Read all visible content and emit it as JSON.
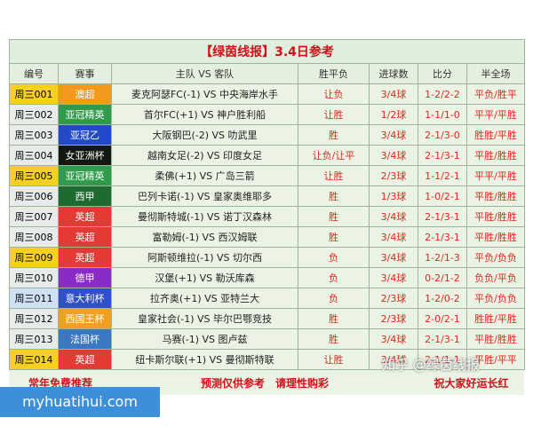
{
  "header": {
    "title": "【绿茵线报】3.4日参考"
  },
  "table": {
    "columns": [
      "编号",
      "赛事",
      "主队 VS 客队",
      "胜平负",
      "进球数",
      "比分",
      "半全场"
    ],
    "rows": [
      [
        "周三001",
        "澳超",
        "麦克阿瑟FC(-1) VS 中央海岸水手",
        "让负",
        "3/4球",
        "1-2/2-2",
        "平负/胜平"
      ],
      [
        "周三002",
        "亚冠精英",
        "首尔FC(+1) VS 神户胜利船",
        "让胜",
        "1/2球",
        "1-1/1-0",
        "平平/平胜"
      ],
      [
        "周三003",
        "亚冠乙",
        "大阪钢巴(-2) VS 叻武里",
        "胜",
        "3/4球",
        "2-1/3-0",
        "胜胜/平胜"
      ],
      [
        "周三004",
        "女亚洲杯",
        "越南女足(-2) VS 印度女足",
        "让负/让平",
        "3/4球",
        "2-1/3-1",
        "平胜/胜胜"
      ],
      [
        "周三005",
        "亚冠精英",
        "柔佛(+1) VS 广岛三箭",
        "让胜",
        "2/3球",
        "1-1/2-1",
        "平平/平胜"
      ],
      [
        "周三006",
        "西甲",
        "巴列卡诺(-1) VS 皇家奥维耶多",
        "胜",
        "1/3球",
        "1-0/2-1",
        "平胜/胜胜"
      ],
      [
        "周三007",
        "英超",
        "曼彻斯特城(-1) VS 诺丁汉森林",
        "胜",
        "3/4球",
        "2-1/3-1",
        "平胜/胜胜"
      ],
      [
        "周三008",
        "英超",
        "富勒姆(-1) VS 西汉姆联",
        "胜",
        "3/4球",
        "2-1/3-1",
        "平胜/胜胜"
      ],
      [
        "周三009",
        "英超",
        "阿斯顿维拉(-1) VS 切尔西",
        "负",
        "3/4球",
        "1-2/1-3",
        "平负/负负"
      ],
      [
        "周三010",
        "德甲",
        "汉堡(+1) VS 勒沃库森",
        "负",
        "3/4球",
        "0-2/1-2",
        "负负/平负"
      ],
      [
        "周三011",
        "意大利杯",
        "拉齐奥(+1) VS 亚特兰大",
        "负",
        "2/3球",
        "1-2/0-2",
        "平负/负负"
      ],
      [
        "周三012",
        "西国王杯",
        "皇家社会(-1) VS 毕尔巴鄂竞技",
        "胜",
        "2/3球",
        "2-0/2-1",
        "胜胜/平胜"
      ],
      [
        "周三013",
        "法国杯",
        "马赛(-1) VS 图卢兹",
        "胜",
        "3/4球",
        "2-1/3-1",
        "平胜/胜胜"
      ],
      [
        "周三014",
        "英超",
        "纽卡斯尔联(+1) VS 曼彻斯特联",
        "让胜",
        "3/4球",
        "2-1/1-1",
        "平胜/平平"
      ]
    ],
    "league_colors": [
      "#f39a1e",
      "#2e9a4a",
      "#2149c8",
      "#101810",
      "#2e9a4a",
      "#1d6b30",
      "#e23a35",
      "#e23a35",
      "#e23a35",
      "#8a2bc8",
      "#3050c8",
      "#f0a020",
      "#3a78c0",
      "#e23a35"
    ],
    "id_colors": [
      "#f5d020",
      "#e8ece8",
      "#e8ece8",
      "#e8ece8",
      "#f5d020",
      "#e8ece8",
      "#e8ece8",
      "#e8ece8",
      "#f5d020",
      "#e8ece8",
      "#cfe0f5",
      "#e8ece8",
      "#e8ece8",
      "#f5d020"
    ]
  },
  "footer": [
    "常年免费推荐",
    "预测仅供参考　请理性购彩",
    "祝大家好运长红"
  ],
  "watermarks": {
    "site": "myhuatihui.com",
    "zhihu": "知乎 @绿茵线报"
  }
}
